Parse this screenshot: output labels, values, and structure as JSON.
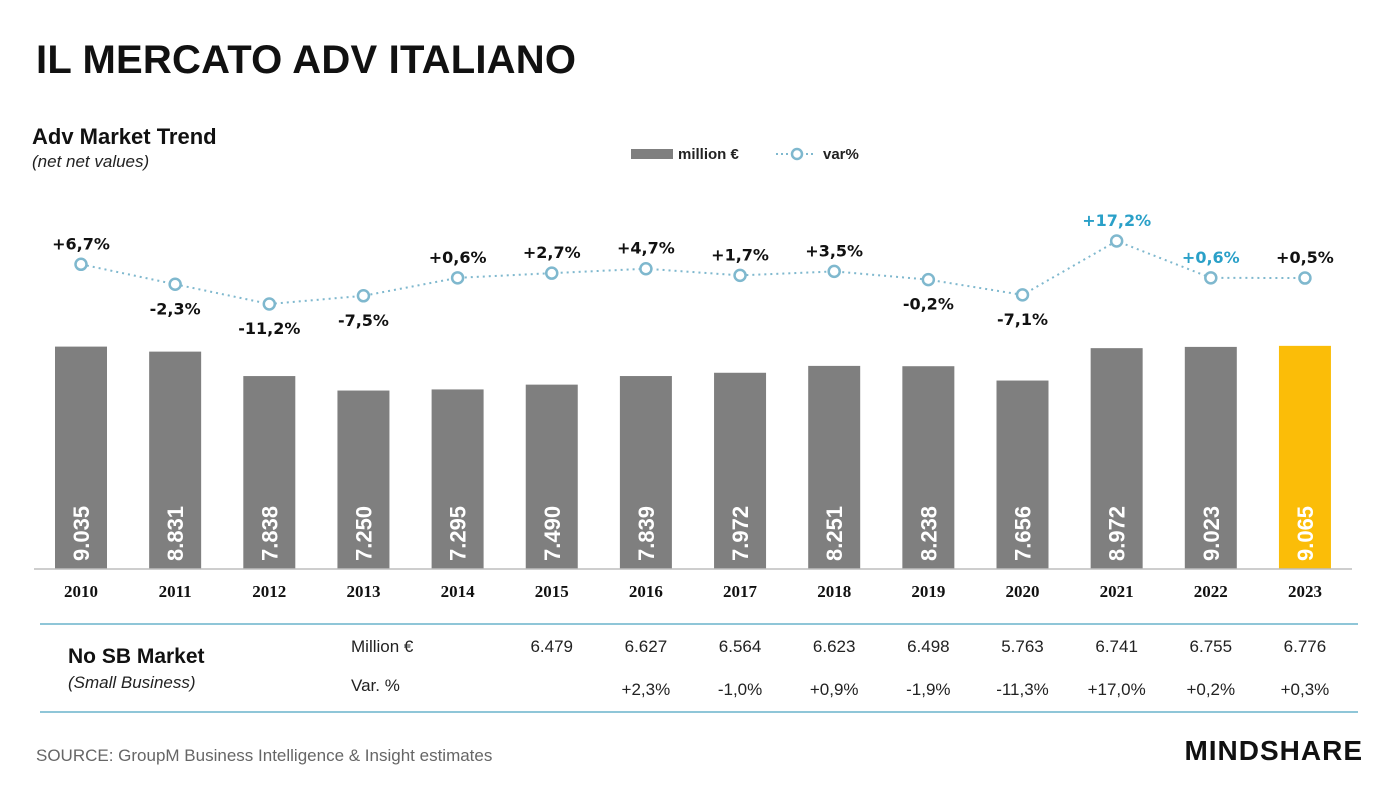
{
  "header": {
    "title": "IL MERCATO ADV ITALIANO",
    "subtitle": "Adv Market Trend",
    "subtitle_note": "(net net values)"
  },
  "chart_data": {
    "type": "bar",
    "title": "Adv Market Trend",
    "legend": [
      {
        "label": "million €",
        "kind": "bar",
        "color": "#7f7f7f"
      },
      {
        "label": "var%",
        "kind": "dotted-line",
        "color": "#7fb8ce"
      }
    ],
    "categories": [
      "2010",
      "2011",
      "2012",
      "2013",
      "2014",
      "2015",
      "2016",
      "2017",
      "2018",
      "2019",
      "2020",
      "2021",
      "2022",
      "2023"
    ],
    "series": [
      {
        "name": "million €",
        "values": [
          9035,
          8831,
          7838,
          7250,
          7295,
          7490,
          7839,
          7972,
          8251,
          8238,
          7656,
          8972,
          9023,
          9065
        ],
        "labels": [
          "9.035",
          "8.831",
          "7.838",
          "7.250",
          "7.295",
          "7.490",
          "7.839",
          "7.972",
          "8.251",
          "8.238",
          "7.656",
          "8.972",
          "9.023",
          "9.065"
        ],
        "color": "#7f7f7f",
        "highlight_index": 13,
        "highlight_color": "#fbbd08"
      },
      {
        "name": "var%",
        "values": [
          6.7,
          -2.3,
          -11.2,
          -7.5,
          0.6,
          2.7,
          4.7,
          1.7,
          3.5,
          -0.2,
          -7.1,
          17.2,
          0.6,
          0.5
        ],
        "labels": [
          "+6,7%",
          "-2,3%",
          "-11,2%",
          "-7,5%",
          "+0,6%",
          "+2,7%",
          "+4,7%",
          "+1,7%",
          "+3,5%",
          "-0,2%",
          "-7,1%",
          "+17,2%",
          "+0,6%",
          "+0,5%"
        ],
        "label_colors": [
          "#111",
          "#111",
          "#111",
          "#111",
          "#111",
          "#111",
          "#111",
          "#111",
          "#111",
          "#111",
          "#111",
          "#2aa0c8",
          "#2aa0c8",
          "#111"
        ],
        "color": "#7fb8ce"
      }
    ],
    "ylim": [
      0,
      9100
    ]
  },
  "no_sb_table": {
    "title": "No SB Market",
    "subtitle": "(Small Business)",
    "row1_label": "Million €",
    "row2_label": "Var. %",
    "years": [
      "2015",
      "2016",
      "2017",
      "2018",
      "2019",
      "2020",
      "2021",
      "2022",
      "2023"
    ],
    "million": [
      "6.479",
      "6.627",
      "6.564",
      "6.623",
      "6.498",
      "5.763",
      "6.741",
      "6.755",
      "6.776"
    ],
    "var": [
      "",
      "+2,3%",
      "-1,0%",
      "+0,9%",
      "-1,9%",
      "-11,3%",
      "+17,0%",
      "+0,2%",
      "+0,3%"
    ]
  },
  "footer": {
    "source": "SOURCE: GroupM  Business Intelligence & Insight estimates",
    "brand": "MINDSHARE"
  }
}
